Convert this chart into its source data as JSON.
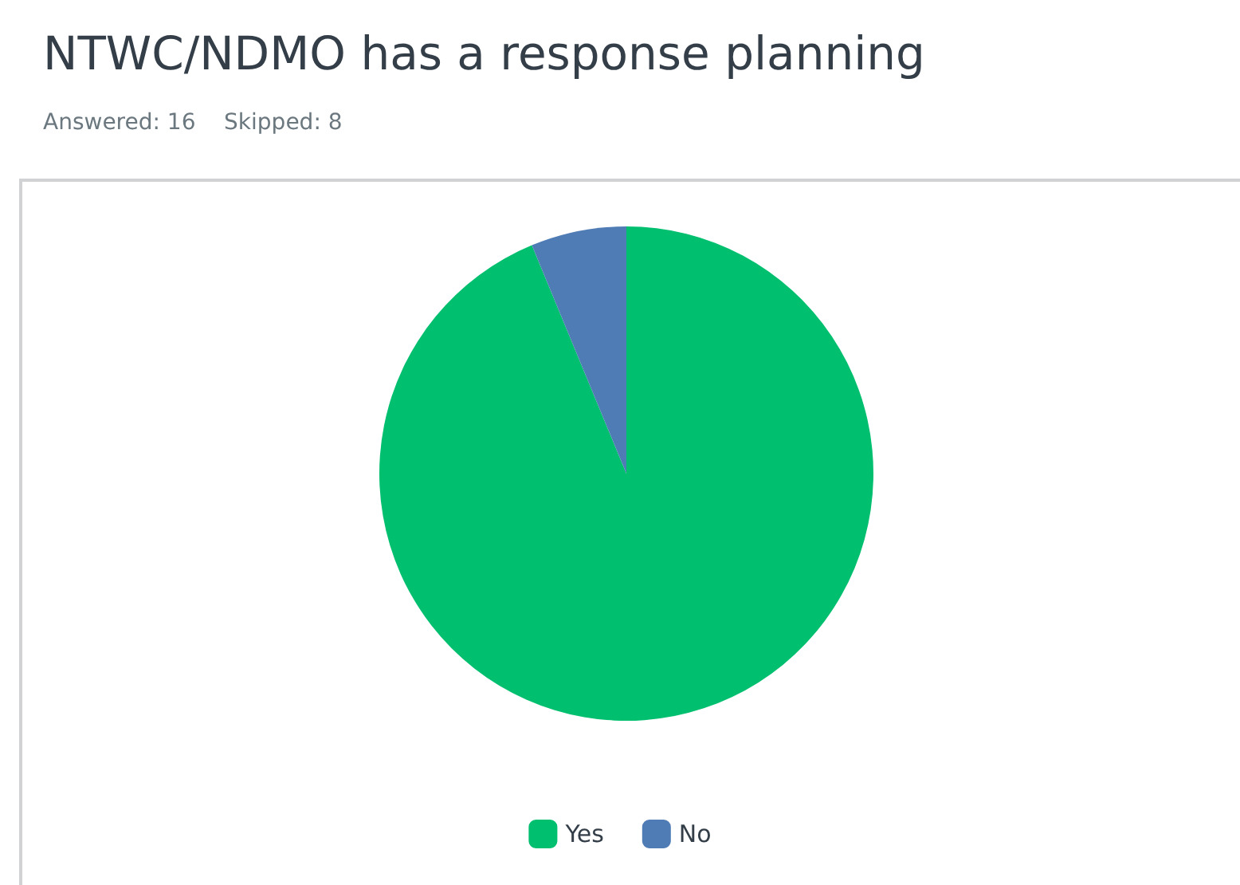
{
  "chart_data": {
    "type": "pie",
    "title": "NTWC/NDMO has a response planning",
    "subtitle": "Answered: 16    Skipped: 8",
    "categories": [
      "Yes",
      "No"
    ],
    "values": [
      93.75,
      6.25
    ],
    "colors": [
      "#00bf6f",
      "#507cb6"
    ],
    "legend": "bottom"
  }
}
